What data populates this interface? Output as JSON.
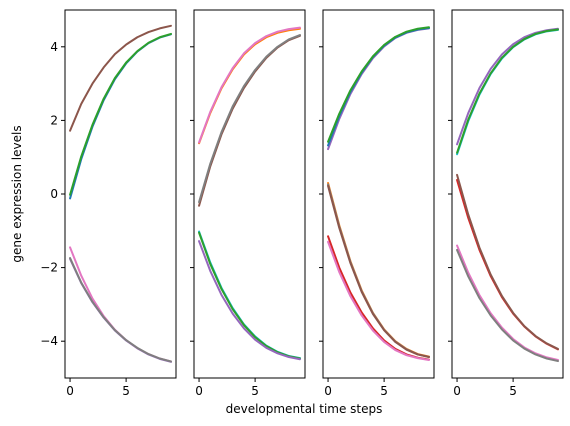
{
  "chart_data": {
    "type": "line",
    "ylabel": "gene expression levels",
    "xlabel": "developmental time steps",
    "shared_y": true,
    "ylim": [
      -5,
      5
    ],
    "yticks": [
      -4,
      -2,
      0,
      2,
      4
    ],
    "grid": false,
    "panels": [
      {
        "xlim": [
          -0.45,
          9.45
        ],
        "xticks": [
          0,
          5
        ],
        "x": [
          0,
          1,
          2,
          3,
          4,
          5,
          6,
          7,
          8,
          9
        ],
        "series": [
          {
            "color": "#1f77b4",
            "values": [
              -0.12,
              0.95,
              1.83,
              2.55,
              3.12,
              3.55,
              3.87,
              4.1,
              4.25,
              4.34
            ]
          },
          {
            "color": "#2ca02c",
            "values": [
              -0.02,
              1.02,
              1.88,
              2.59,
              3.15,
              3.57,
              3.88,
              4.11,
              4.26,
              4.35
            ]
          },
          {
            "color": "#8c564b",
            "values": [
              1.72,
              2.45,
              3.0,
              3.44,
              3.8,
              4.06,
              4.26,
              4.4,
              4.5,
              4.57
            ]
          },
          {
            "color": "#e377c2",
            "values": [
              -1.45,
              -2.22,
              -2.84,
              -3.32,
              -3.69,
              -3.97,
              -4.19,
              -4.35,
              -4.47,
              -4.55
            ]
          },
          {
            "color": "#9467bd",
            "values": [
              -1.76,
              -2.42,
              -2.94,
              -3.36,
              -3.71,
              -3.98,
              -4.19,
              -4.36,
              -4.48,
              -4.56
            ]
          },
          {
            "color": "#7f7f7f",
            "values": [
              -1.74,
              -2.41,
              -2.93,
              -3.35,
              -3.7,
              -3.97,
              -4.18,
              -4.35,
              -4.47,
              -4.55
            ]
          }
        ]
      },
      {
        "xlim": [
          -0.45,
          9.45
        ],
        "xticks": [
          0,
          5
        ],
        "x": [
          0,
          1,
          2,
          3,
          4,
          5,
          6,
          7,
          8,
          9
        ],
        "series": [
          {
            "color": "#ff7f0e",
            "values": [
              1.38,
              2.2,
              2.87,
              3.39,
              3.79,
              4.07,
              4.26,
              4.38,
              4.45,
              4.49
            ]
          },
          {
            "color": "#e377c2",
            "values": [
              1.4,
              2.23,
              2.9,
              3.42,
              3.82,
              4.1,
              4.29,
              4.41,
              4.48,
              4.52
            ]
          },
          {
            "color": "#8c564b",
            "values": [
              -0.32,
              0.75,
              1.62,
              2.32,
              2.88,
              3.33,
              3.7,
              3.98,
              4.18,
              4.3
            ]
          },
          {
            "color": "#7f7f7f",
            "values": [
              -0.22,
              0.82,
              1.68,
              2.38,
              2.93,
              3.37,
              3.73,
              4.0,
              4.2,
              4.32
            ]
          },
          {
            "color": "#17becf",
            "values": [
              -1.02,
              -1.86,
              -2.55,
              -3.1,
              -3.54,
              -3.87,
              -4.12,
              -4.29,
              -4.4,
              -4.46
            ]
          },
          {
            "color": "#2ca02c",
            "values": [
              -1.05,
              -1.9,
              -2.58,
              -3.13,
              -3.56,
              -3.89,
              -4.13,
              -4.3,
              -4.41,
              -4.47
            ]
          },
          {
            "color": "#9467bd",
            "values": [
              -1.28,
              -2.09,
              -2.74,
              -3.25,
              -3.65,
              -3.96,
              -4.18,
              -4.33,
              -4.43,
              -4.49
            ]
          }
        ]
      },
      {
        "xlim": [
          -0.45,
          9.45
        ],
        "xticks": [
          0,
          5
        ],
        "x": [
          0,
          1,
          2,
          3,
          4,
          5,
          6,
          7,
          8,
          9
        ],
        "series": [
          {
            "color": "#9467bd",
            "values": [
              1.22,
              2.04,
              2.72,
              3.26,
              3.69,
              4.01,
              4.24,
              4.38,
              4.46,
              4.5
            ]
          },
          {
            "color": "#1f77b4",
            "values": [
              1.32,
              2.12,
              2.78,
              3.3,
              3.72,
              4.03,
              4.25,
              4.39,
              4.47,
              4.51
            ]
          },
          {
            "color": "#2ca02c",
            "values": [
              1.42,
              2.18,
              2.82,
              3.33,
              3.74,
              4.05,
              4.27,
              4.41,
              4.49,
              4.53
            ]
          },
          {
            "color": "#ff7f0e",
            "values": [
              0.3,
              -0.85,
              -1.83,
              -2.62,
              -3.23,
              -3.68,
              -4.0,
              -4.21,
              -4.35,
              -4.42
            ]
          },
          {
            "color": "#7f7f7f",
            "values": [
              0.26,
              -0.88,
              -1.85,
              -2.64,
              -3.24,
              -3.69,
              -4.01,
              -4.22,
              -4.36,
              -4.43
            ]
          },
          {
            "color": "#8c564b",
            "values": [
              0.22,
              -0.92,
              -1.88,
              -2.66,
              -3.26,
              -3.7,
              -4.02,
              -4.23,
              -4.36,
              -4.43
            ]
          },
          {
            "color": "#d62728",
            "values": [
              -1.15,
              -2.0,
              -2.68,
              -3.22,
              -3.65,
              -3.98,
              -4.21,
              -4.36,
              -4.45,
              -4.5
            ]
          },
          {
            "color": "#e377c2",
            "values": [
              -1.3,
              -2.12,
              -2.78,
              -3.3,
              -3.71,
              -4.02,
              -4.24,
              -4.38,
              -4.46,
              -4.51
            ]
          }
        ]
      },
      {
        "xlim": [
          -0.45,
          9.45
        ],
        "xticks": [
          0,
          5
        ],
        "x": [
          0,
          1,
          2,
          3,
          4,
          5,
          6,
          7,
          8,
          9
        ],
        "series": [
          {
            "color": "#9467bd",
            "values": [
              1.35,
              2.2,
              2.88,
              3.4,
              3.79,
              4.07,
              4.26,
              4.38,
              4.45,
              4.49
            ]
          },
          {
            "color": "#17becf",
            "values": [
              1.08,
              1.98,
              2.7,
              3.26,
              3.68,
              3.99,
              4.2,
              4.34,
              4.42,
              4.46
            ]
          },
          {
            "color": "#2ca02c",
            "values": [
              1.12,
              2.02,
              2.73,
              3.28,
              3.7,
              4.0,
              4.21,
              4.35,
              4.43,
              4.47
            ]
          },
          {
            "color": "#d62728",
            "values": [
              0.38,
              -0.65,
              -1.52,
              -2.23,
              -2.8,
              -3.25,
              -3.6,
              -3.87,
              -4.07,
              -4.22
            ]
          },
          {
            "color": "#8c564b",
            "values": [
              0.52,
              -0.56,
              -1.46,
              -2.19,
              -2.77,
              -3.23,
              -3.59,
              -3.86,
              -4.06,
              -4.21
            ]
          },
          {
            "color": "#e377c2",
            "values": [
              -1.4,
              -2.14,
              -2.75,
              -3.24,
              -3.63,
              -3.94,
              -4.17,
              -4.33,
              -4.44,
              -4.51
            ]
          },
          {
            "color": "#7f7f7f",
            "values": [
              -1.52,
              -2.24,
              -2.83,
              -3.3,
              -3.68,
              -3.98,
              -4.2,
              -4.36,
              -4.47,
              -4.54
            ]
          }
        ]
      }
    ]
  }
}
